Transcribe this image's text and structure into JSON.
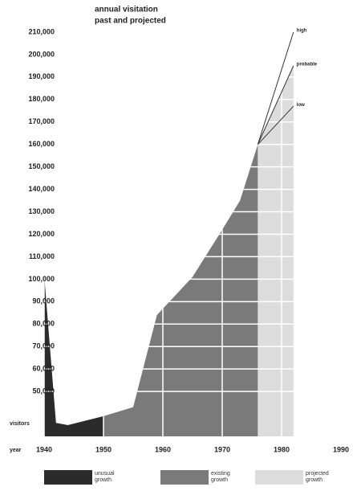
{
  "chart_data": {
    "type": "area",
    "title": "annual visitation",
    "subtitle": "past and projected",
    "y_label": "visitors",
    "x_label": "year",
    "xlim": [
      1940,
      1990
    ],
    "xticks": [
      1940,
      1950,
      1960,
      1970,
      1980,
      1990
    ],
    "ylim": [
      30000,
      215000
    ],
    "yticks": [
      {
        "value": 50000,
        "label": "50,000"
      },
      {
        "value": 60000,
        "label": "60,000"
      },
      {
        "value": 70000,
        "label": "70,000"
      },
      {
        "value": 80000,
        "label": "80,000"
      },
      {
        "value": 90000,
        "label": "90,000"
      },
      {
        "value": 100000,
        "label": "100,000"
      },
      {
        "value": 110000,
        "label": "110,000"
      },
      {
        "value": 120000,
        "label": "120,000"
      },
      {
        "value": 130000,
        "label": "130,000"
      },
      {
        "value": 140000,
        "label": "140,000"
      },
      {
        "value": 150000,
        "label": "150,000"
      },
      {
        "value": 160000,
        "label": "160,000"
      },
      {
        "value": 170000,
        "label": "170,000"
      },
      {
        "value": 180000,
        "label": "180,000"
      },
      {
        "value": 190000,
        "label": "190,000"
      },
      {
        "value": 200000,
        "label": "200,000"
      },
      {
        "value": 210000,
        "label": "210,000"
      }
    ],
    "grid": true,
    "grid_color": "#ffffff",
    "series": [
      {
        "name": "unusual growth",
        "color": "#2b2b2b",
        "x": [
          1940,
          1942,
          1944,
          1950
        ],
        "values": [
          102000,
          36000,
          35000,
          39000
        ]
      },
      {
        "name": "existing growth",
        "color": "#7a7a7a",
        "x": [
          1950,
          1955,
          1959,
          1965,
          1970,
          1973,
          1976
        ],
        "values": [
          39000,
          43000,
          84000,
          101000,
          122000,
          135000,
          160000
        ]
      },
      {
        "name": "projected growth",
        "color": "#dcdcdc",
        "x": [
          1976,
          1982
        ],
        "values": [
          160000,
          195000
        ]
      }
    ],
    "projections": [
      {
        "name": "high",
        "color": "#333333",
        "x": [
          1976,
          1982
        ],
        "values": [
          160000,
          210000
        ]
      },
      {
        "name": "probable",
        "color": "#333333",
        "x": [
          1976,
          1982
        ],
        "values": [
          160000,
          195000
        ]
      },
      {
        "name": "low",
        "color": "#333333",
        "x": [
          1976,
          1982
        ],
        "values": [
          160000,
          177000
        ]
      }
    ]
  }
}
